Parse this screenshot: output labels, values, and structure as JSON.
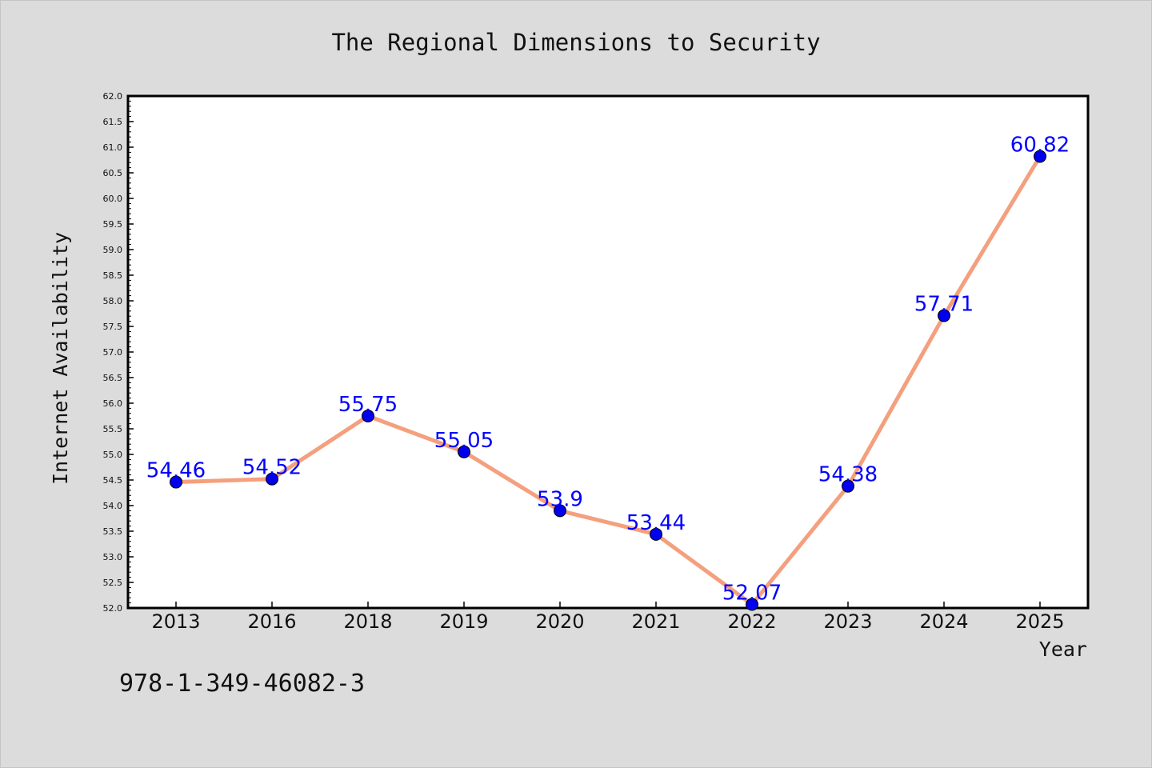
{
  "chart_data": {
    "type": "line",
    "title": "The Regional Dimensions to Security",
    "xlabel": "Year",
    "ylabel": "Internet Availability",
    "categories": [
      "2013",
      "2016",
      "2018",
      "2019",
      "2020",
      "2021",
      "2022",
      "2023",
      "2024",
      "2025"
    ],
    "values": [
      54.46,
      54.52,
      55.75,
      55.05,
      53.9,
      53.44,
      52.07,
      54.38,
      57.71,
      60.82
    ],
    "data_labels": [
      "54.46",
      "54.52",
      "55.75",
      "55.05",
      "53.9",
      "53.44",
      "52.07",
      "54.38",
      "57.71",
      "60.82"
    ],
    "ylim": [
      52.0,
      62.0
    ],
    "yticks": [
      "52.0",
      "52.5",
      "53.0",
      "53.5",
      "54.0",
      "54.5",
      "55.0",
      "55.5",
      "56.0",
      "56.5",
      "57.0",
      "57.5",
      "58.0",
      "58.5",
      "59.0",
      "59.5",
      "60.0",
      "60.5",
      "61.0",
      "61.5",
      "62.0"
    ],
    "grid": false,
    "line_color": "#f4a07e",
    "marker_color": "#0000ee",
    "label_color": "#0000ff",
    "annotation": "978-1-349-46082-3"
  }
}
